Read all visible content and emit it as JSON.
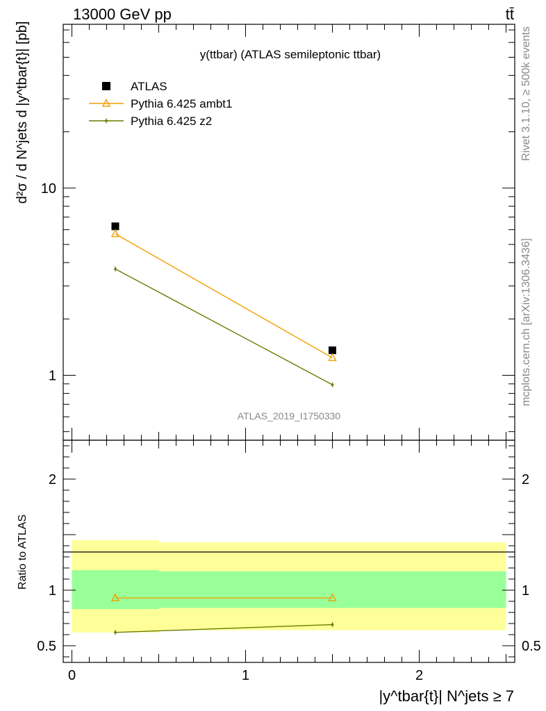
{
  "header": {
    "energy": "13000 GeV pp",
    "process": "tt̄"
  },
  "side": {
    "rivet": "Rivet 3.1.10, ≥ 500k events",
    "mcplots": "mcplots.cern.ch [arXiv:1306.3436]"
  },
  "chart_data": [
    {
      "type": "scatter",
      "title": "y(ttbar) (ATLAS semileptonic ttbar)",
      "watermark": "ATLAS_2019_I1750330",
      "ylabel": "d²σ / d N^jets d |y^tbar{t}| [pb]",
      "yscale": "log",
      "ylim": [
        0.45,
        75
      ],
      "xlim": [
        -0.05,
        2.55
      ],
      "yticks": [
        {
          "value": 1,
          "label": "1"
        },
        {
          "value": 10,
          "label": "10"
        }
      ],
      "legend_position": "top-left",
      "series": [
        {
          "name": "ATLAS",
          "color": "#000000",
          "marker": "square",
          "x": [
            0.25,
            1.5
          ],
          "y": [
            6.25,
            1.36
          ]
        },
        {
          "name": "Pythia 6.425 ambt1",
          "color": "#f0a000",
          "marker": "open-triangle",
          "x": [
            0.25,
            1.5
          ],
          "y": [
            5.7,
            1.24
          ]
        },
        {
          "name": "Pythia 6.425 z2",
          "color": "#6b7a00",
          "marker": "point",
          "x": [
            0.25,
            1.5
          ],
          "y": [
            3.7,
            0.89
          ]
        }
      ]
    },
    {
      "type": "scatter",
      "ylabel": "Ratio to ATLAS",
      "xlabel": "|y^tbar{t}| N^jets ≥ 7",
      "ylim": [
        0.35,
        2.35
      ],
      "xlim": [
        -0.05,
        2.55
      ],
      "yticks": [
        {
          "value": 0.5,
          "label": "0.5"
        },
        {
          "value": 1,
          "label": "1"
        },
        {
          "value": 2,
          "label": "2"
        }
      ],
      "xticks": [
        {
          "value": 0,
          "label": "0"
        },
        {
          "value": 1,
          "label": "1"
        },
        {
          "value": 2,
          "label": "2"
        }
      ],
      "bands": [
        {
          "x": [
            0,
            0.5
          ],
          "yellow": [
            0.62,
            1.45
          ],
          "green": [
            0.83,
            1.18
          ]
        },
        {
          "x": [
            0.5,
            2.5
          ],
          "yellow": [
            0.64,
            1.43
          ],
          "green": [
            0.84,
            1.17
          ]
        }
      ],
      "band_colors": {
        "yellow": "#ffff99",
        "green": "#99ff99"
      },
      "series": [
        {
          "name": "Pythia 6.425 ambt1",
          "color": "#f0a000",
          "marker": "open-triangle",
          "x": [
            0.25,
            1.5
          ],
          "y": [
            0.93,
            0.93
          ]
        },
        {
          "name": "Pythia 6.425 z2",
          "color": "#6b7a00",
          "marker": "point",
          "x": [
            0.25,
            1.5
          ],
          "y": [
            0.62,
            0.69
          ]
        }
      ]
    }
  ]
}
